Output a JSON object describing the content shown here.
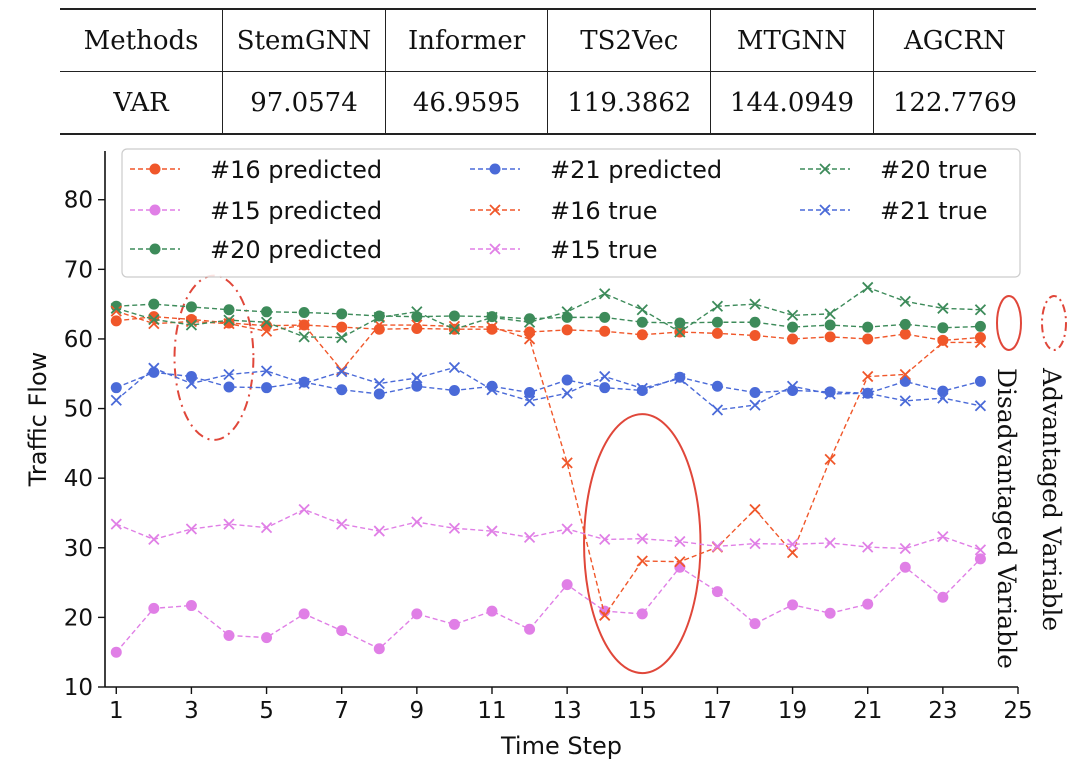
{
  "table": {
    "headers": [
      "Methods",
      "StemGNN",
      "Informer",
      "TS2Vec",
      "MTGNN",
      "AGCRN"
    ],
    "row": [
      "VAR",
      "97.0574",
      "46.9595",
      "119.3862",
      "144.0949",
      "122.7769"
    ]
  },
  "chart_data": {
    "type": "line",
    "title": "",
    "xlabel": "Time Step",
    "ylabel": "Traffic Flow",
    "xlim": [
      0.7,
      25
    ],
    "ylim": [
      10,
      87
    ],
    "x_ticks": [
      1,
      3,
      5,
      7,
      9,
      11,
      13,
      15,
      17,
      19,
      21,
      23,
      25
    ],
    "y_ticks": [
      10,
      20,
      30,
      40,
      50,
      60,
      70,
      80
    ],
    "x": [
      1,
      2,
      3,
      4,
      5,
      6,
      7,
      8,
      9,
      10,
      11,
      12,
      13,
      14,
      15,
      16,
      17,
      18,
      19,
      20,
      21,
      22,
      23,
      24
    ],
    "legend_position": "top",
    "series": [
      {
        "name": "#16 predicted",
        "color": "#f0572a",
        "marker": "circle",
        "values": [
          62.6,
          63.2,
          62.8,
          62.3,
          61.9,
          62.0,
          61.7,
          61.4,
          61.5,
          61.4,
          61.4,
          61.0,
          61.3,
          61.1,
          60.6,
          61.0,
          60.8,
          60.5,
          60.0,
          60.3,
          60.0,
          60.7,
          59.8,
          60.2
        ]
      },
      {
        "name": "#15 predicted",
        "color": "#e07fe6",
        "marker": "circle",
        "values": [
          15.0,
          21.3,
          21.7,
          17.4,
          17.1,
          20.5,
          18.1,
          15.5,
          20.5,
          19.0,
          20.9,
          18.3,
          24.7,
          20.9,
          20.5,
          27.2,
          23.7,
          19.1,
          21.8,
          20.6,
          21.9,
          27.2,
          22.9,
          28.4
        ]
      },
      {
        "name": "#20 predicted",
        "color": "#3d8b5a",
        "marker": "circle",
        "values": [
          64.7,
          65.0,
          64.6,
          64.2,
          63.9,
          63.8,
          63.6,
          63.3,
          63.2,
          63.3,
          63.2,
          62.9,
          63.1,
          63.1,
          62.4,
          62.3,
          62.4,
          62.4,
          61.7,
          62.0,
          61.7,
          62.1,
          61.6,
          61.8
        ]
      },
      {
        "name": "#21 predicted",
        "color": "#4a6ad8",
        "marker": "circle",
        "values": [
          53.0,
          55.2,
          54.6,
          53.1,
          53.0,
          53.8,
          52.7,
          52.1,
          53.2,
          52.6,
          53.2,
          52.3,
          54.1,
          53.0,
          52.6,
          54.5,
          53.2,
          52.3,
          52.6,
          52.4,
          52.2,
          53.9,
          52.5,
          53.9
        ]
      },
      {
        "name": "#16 true",
        "color": "#f0572a",
        "marker": "x",
        "values": [
          64.0,
          62.2,
          62.5,
          62.2,
          61.1,
          62.0,
          55.5,
          62.0,
          62.0,
          61.8,
          61.7,
          60.0,
          42.2,
          20.3,
          28.1,
          28.0,
          30.1,
          35.5,
          29.3,
          42.7,
          54.6,
          54.9,
          59.5,
          59.5
        ]
      },
      {
        "name": "#15 true",
        "color": "#e07fe6",
        "marker": "x",
        "values": [
          33.4,
          31.2,
          32.7,
          33.4,
          32.9,
          35.5,
          33.4,
          32.4,
          33.7,
          32.8,
          32.4,
          31.5,
          32.7,
          31.2,
          31.3,
          30.9,
          30.2,
          30.6,
          30.5,
          30.7,
          30.1,
          29.9,
          31.6,
          29.7
        ]
      },
      {
        "name": "#20 true",
        "color": "#3d8b5a",
        "marker": "x",
        "values": [
          64.4,
          62.8,
          62.0,
          62.7,
          62.4,
          60.3,
          60.2,
          63.1,
          63.9,
          61.4,
          63.1,
          62.4,
          63.9,
          66.5,
          64.2,
          61.0,
          64.7,
          65.0,
          63.4,
          63.6,
          67.4,
          65.4,
          64.4,
          64.2
        ]
      },
      {
        "name": "#21 true",
        "color": "#4a6ad8",
        "marker": "x",
        "values": [
          51.2,
          55.8,
          53.6,
          54.9,
          55.4,
          53.6,
          55.3,
          53.6,
          54.4,
          55.9,
          52.7,
          51.1,
          52.2,
          54.6,
          52.9,
          54.3,
          49.8,
          50.5,
          53.2,
          52.1,
          52.2,
          51.1,
          51.5,
          50.4
        ]
      }
    ],
    "annotations": [
      {
        "label": "Advantaged Variable",
        "style": "dash-dot ellipse",
        "color": "#e0473a",
        "center": [
          3.6,
          57.3
        ],
        "x_radius": 1.05,
        "y_radius": 11.8
      },
      {
        "label": "Disadvantaged Variable",
        "style": "solid ellipse",
        "color": "#e0473a",
        "center": [
          15.0,
          30.6
        ],
        "x_radius": 1.55,
        "y_radius": 18.6
      }
    ]
  }
}
